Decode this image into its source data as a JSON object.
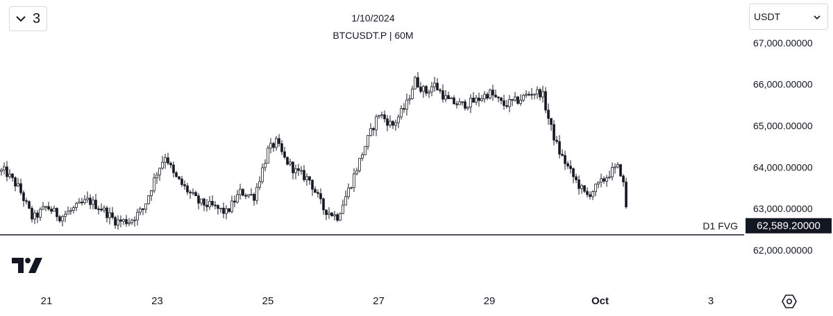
{
  "header": {
    "date": "1/10/2024",
    "symbol": "BTCUSDT.P | 60M"
  },
  "interval_button": {
    "value": "3",
    "icon": "chevron-down-icon"
  },
  "currency_select": {
    "value": "USDT",
    "icon": "chevron-down-icon"
  },
  "fvg_label": "D1 FVG",
  "price_tag": "62,589.20000",
  "logo": "tradingview-logo",
  "settings_icon": "settings-hexagon-icon",
  "colors": {
    "candle": "#131722",
    "background": "#ffffff",
    "price_tag_bg": "#131722",
    "price_tag_text": "#ffffff"
  },
  "chart_data": {
    "type": "candlestick",
    "y_ticks": [
      "67,000.00000",
      "66,000.00000",
      "65,000.00000",
      "64,000.00000",
      "63,000.00000",
      "62,000.00000"
    ],
    "y_tick_values": [
      67000,
      66000,
      65000,
      64000,
      63000,
      62000
    ],
    "x_ticks": [
      "21",
      "23",
      "25",
      "27",
      "29",
      "Oct",
      "3"
    ],
    "ylim": [
      61700,
      67400
    ],
    "xlim": [
      20.15,
      3.1
    ],
    "last_price": 62589.2,
    "horizontal_line": {
      "label": "D1 FVG",
      "value": 62370
    },
    "series": [
      {
        "name": "",
        "x": [
          20.25,
          20.5,
          20.75,
          21.0,
          21.25,
          21.5,
          21.75,
          22.0,
          22.25,
          22.5,
          22.75,
          23.0,
          23.15,
          23.3,
          23.5,
          23.75,
          24.0,
          24.25,
          24.5,
          24.75,
          25.0,
          25.15,
          25.3,
          25.5,
          25.75,
          26.0,
          26.25,
          26.5,
          26.75,
          27.0,
          27.25,
          27.5,
          27.65,
          27.85,
          28.0,
          28.25,
          28.5,
          28.75,
          29.0,
          29.25,
          29.5,
          29.75,
          29.95,
          30.1,
          30.25,
          30.5,
          30.75,
          31.0,
          31.2,
          31.35,
          31.45,
          31.5
        ],
        "values": [
          63900,
          63500,
          62750,
          63050,
          62800,
          63000,
          63200,
          63000,
          62700,
          62700,
          63000,
          63900,
          64300,
          63800,
          63500,
          63150,
          63050,
          62900,
          63400,
          63300,
          64400,
          64600,
          64200,
          63900,
          63700,
          63000,
          62800,
          63600,
          64500,
          65300,
          65000,
          65500,
          66100,
          65800,
          66000,
          65600,
          65500,
          65600,
          65800,
          65500,
          65600,
          65800,
          65800,
          65000,
          64400,
          63800,
          63300,
          63600,
          63900,
          64000,
          63400,
          62589.2
        ]
      }
    ]
  }
}
